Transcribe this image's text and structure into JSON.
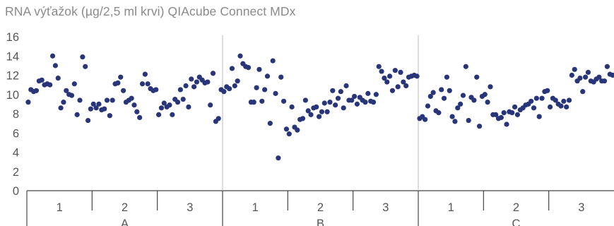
{
  "chart_data": {
    "type": "scatter",
    "title": "RNA výťažok (µg/2,5 ml krvi) QIAcube Connect MDx",
    "xlabel": "",
    "ylabel": "",
    "ylim": [
      0,
      16
    ],
    "yticks": [
      "0",
      "2",
      "4",
      "6",
      "8",
      "10",
      "12",
      "14",
      "16"
    ],
    "grid": false,
    "point_color": "#283579",
    "divider_color": "#bbbbbb",
    "axis_color": "#444444",
    "groups": [
      {
        "label": "A",
        "subgroups": [
          {
            "label": "1",
            "values": [
              9.2,
              10.5,
              10.3,
              10.4,
              11.4,
              11.5,
              11.0,
              11.1,
              11.0,
              14.0,
              13.0,
              11.7,
              8.6,
              9.2,
              10.4,
              10.0,
              9.9,
              11.1,
              7.9,
              9.4,
              13.9,
              12.9,
              7.3,
              8.5
            ]
          },
          {
            "label": "2",
            "values": [
              9.0,
              8.6,
              9.0,
              8.4,
              8.5,
              9.4,
              7.8,
              9.4,
              11.1,
              11.2,
              11.8,
              10.4,
              9.2,
              9.4,
              9.6,
              8.9,
              8.2,
              7.6,
              11.1,
              12.1,
              11.1,
              10.6,
              10.4,
              10.5
            ]
          },
          {
            "label": "3",
            "values": [
              7.9,
              8.6,
              9.1,
              8.7,
              8.9,
              7.9,
              9.5,
              9.2,
              10.5,
              9.5,
              10.9,
              8.7,
              11.6,
              10.8,
              11.3,
              11.8,
              11.5,
              11.2,
              11.3,
              8.9,
              12.2,
              7.2,
              7.5,
              10.5
            ]
          }
        ]
      },
      {
        "label": "B",
        "subgroups": [
          {
            "label": "1",
            "values": [
              10.3,
              10.8,
              10.6,
              12.7,
              10.9,
              11.4,
              14.0,
              13.2,
              12.9,
              12.8,
              9.2,
              9.2,
              10.7,
              12.6,
              9.3,
              10.5,
              11.9,
              7.0,
              13.5,
              10.1,
              3.4,
              11.8,
              9.3,
              6.4
            ]
          },
          {
            "label": "2",
            "values": [
              5.9,
              8.7,
              6.6,
              6.3,
              7.4,
              7.5,
              9.4,
              8.3,
              7.9,
              8.6,
              8.7,
              7.7,
              8.2,
              9.1,
              8.2,
              9.2,
              10.4,
              8.9,
              9.6,
              10.3,
              8.6,
              10.9,
              9.4,
              9.4
            ]
          },
          {
            "label": "3",
            "values": [
              9.8,
              9.0,
              9.7,
              9.4,
              9.2,
              10.1,
              9.3,
              9.2,
              10.0,
              12.9,
              12.4,
              11.7,
              11.3,
              11.9,
              10.4,
              12.5,
              10.8,
              12.3,
              11.3,
              10.9,
              11.8,
              11.9,
              12.0,
              11.9
            ]
          }
        ]
      },
      {
        "label": "C",
        "subgroups": [
          {
            "label": "1",
            "values": [
              7.5,
              7.7,
              7.4,
              8.8,
              9.8,
              10.2,
              8.3,
              8.1,
              10.5,
              9.6,
              11.8,
              10.4,
              7.7,
              7.2,
              8.6,
              9.0,
              9.9,
              12.9,
              7.3,
              9.7,
              9.4,
              11.8,
              6.7,
              9.8
            ]
          },
          {
            "label": "2",
            "values": [
              10.0,
              9.2,
              10.8,
              7.9,
              7.9,
              7.5,
              7.6,
              8.1,
              6.9,
              8.2,
              8.1,
              8.7,
              7.9,
              8.4,
              8.6,
              8.9,
              9.0,
              9.3,
              8.6,
              9.6,
              7.7,
              9.6,
              10.3,
              10.4
            ]
          },
          {
            "label": "3",
            "values": [
              8.7,
              9.6,
              9.4,
              9.0,
              8.8,
              9.3,
              8.7,
              9.4,
              12.0,
              12.6,
              11.4,
              11.7,
              10.3,
              11.8,
              12.3,
              11.4,
              11.3,
              11.6,
              11.8,
              11.4,
              11.4,
              12.9,
              12.1,
              12.0
            ]
          }
        ]
      }
    ]
  }
}
